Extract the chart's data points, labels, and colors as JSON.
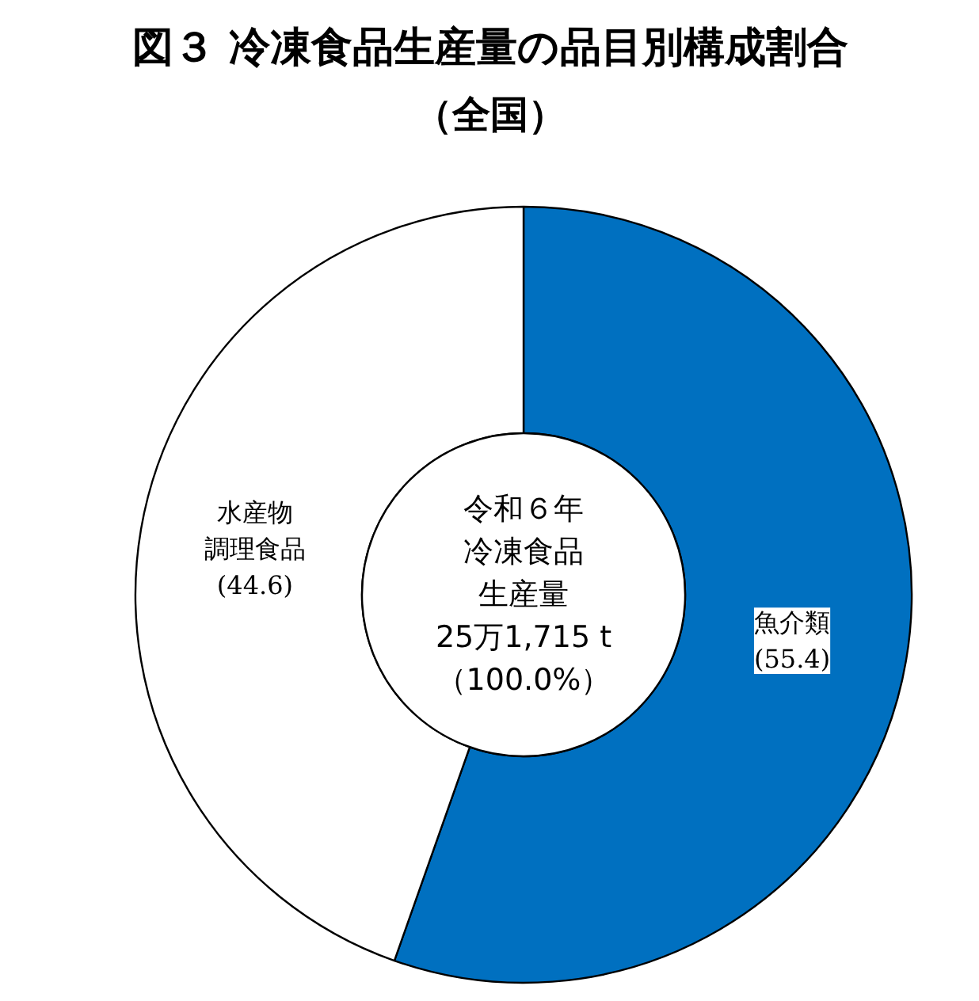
{
  "chart_data": {
    "type": "donut",
    "title": "図３ 冷凍食品生産量の品目別構成割合",
    "subtitle": "（全国）",
    "categories": [
      "魚介類",
      "水産物調理食品"
    ],
    "values": [
      55.4,
      44.6
    ],
    "colors": [
      "#0070c0",
      "#ffffff"
    ],
    "value_labels": [
      "(55.4)",
      "(44.6)"
    ],
    "annotations": [
      "令和６年",
      "冷凍食品",
      "生産量",
      "25万1,715 t",
      "（100.0%）"
    ]
  }
}
